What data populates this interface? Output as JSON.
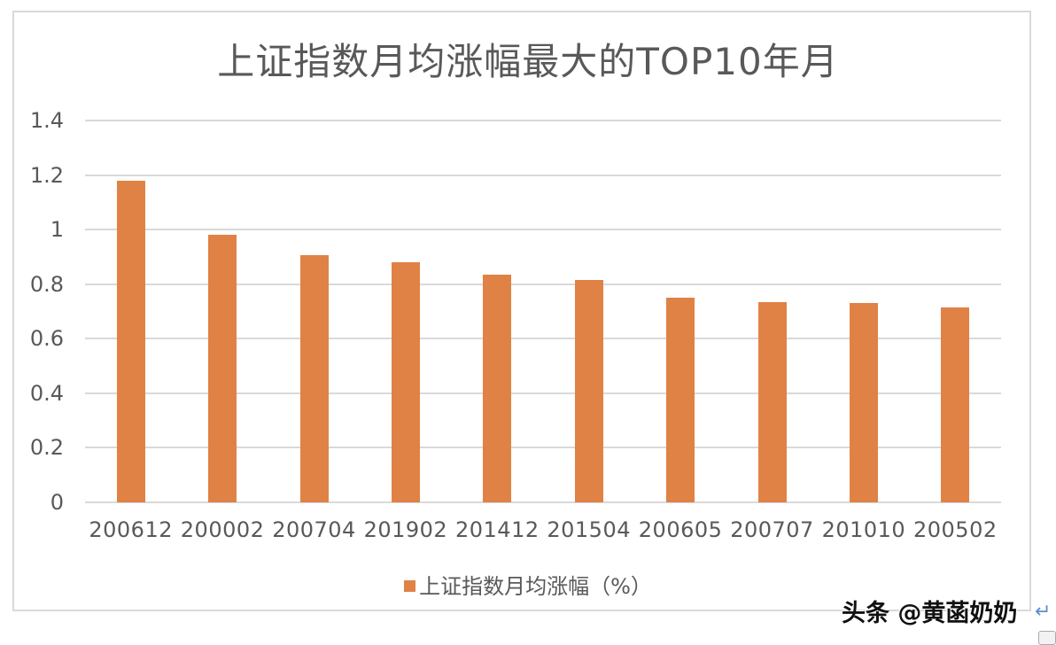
{
  "chart_data": {
    "type": "bar",
    "title": "上证指数月均涨幅最大的TOP10年月",
    "categories": [
      "200612",
      "200002",
      "200704",
      "201902",
      "201412",
      "201504",
      "200605",
      "200707",
      "201010",
      "200502"
    ],
    "series": [
      {
        "name": "上证指数月均涨幅（%）",
        "color": "#e08245",
        "values": [
          1.18,
          0.98,
          0.905,
          0.88,
          0.835,
          0.815,
          0.75,
          0.735,
          0.73,
          0.715
        ]
      }
    ],
    "xlabel": "",
    "ylabel": "",
    "ylim": [
      0,
      1.4
    ],
    "yticks": [
      "0",
      "0.2",
      "0.4",
      "0.6",
      "0.8",
      "1",
      "1.2",
      "1.4"
    ],
    "grid": true,
    "legend_position": "bottom"
  },
  "legend": {
    "label": "上证指数月均涨幅（%）"
  },
  "watermark": {
    "text": "头条 @黄菡奶奶"
  },
  "colors": {
    "bar": "#e08245",
    "grid": "#d9d9d9",
    "text": "#595959"
  }
}
